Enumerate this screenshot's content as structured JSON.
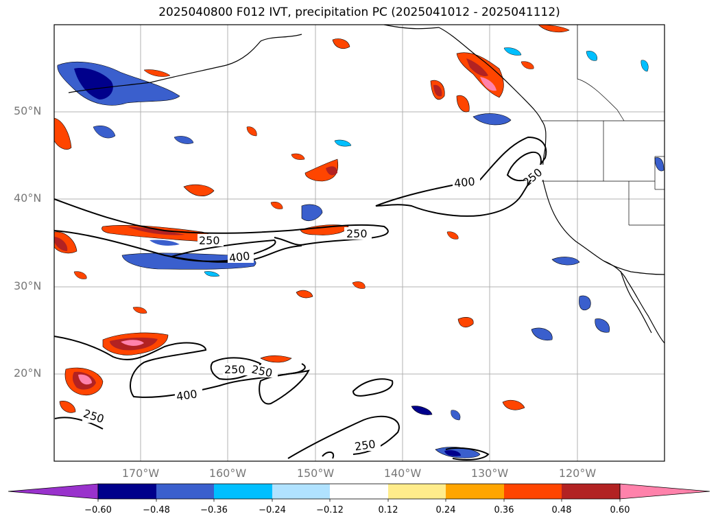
{
  "title": "2025040800 F012 IVT, precipitation PC (2025041012 - 2025041112)",
  "lat_labels": [
    "50°N",
    "40°N",
    "30°N",
    "20°N"
  ],
  "lon_labels": [
    "170°W",
    "160°W",
    "150°W",
    "140°W",
    "130°W",
    "120°W"
  ],
  "contour_labels": [
    "250",
    "400",
    "250",
    "400",
    "250",
    "250",
    "250",
    "400",
    "250",
    "250"
  ],
  "colorbar": {
    "ticks": [
      "−0.60",
      "−0.48",
      "−0.36",
      "−0.24",
      "−0.12",
      "0.12",
      "0.24",
      "0.36",
      "0.48",
      "0.60"
    ],
    "colors": [
      "#9932cc",
      "#00008b",
      "#3a5fcd",
      "#00bfff",
      "#b0e2ff",
      "#ffffff",
      "#ffec8b",
      "#ffa500",
      "#ff4500",
      "#b22222",
      "#ff82ab"
    ]
  }
}
